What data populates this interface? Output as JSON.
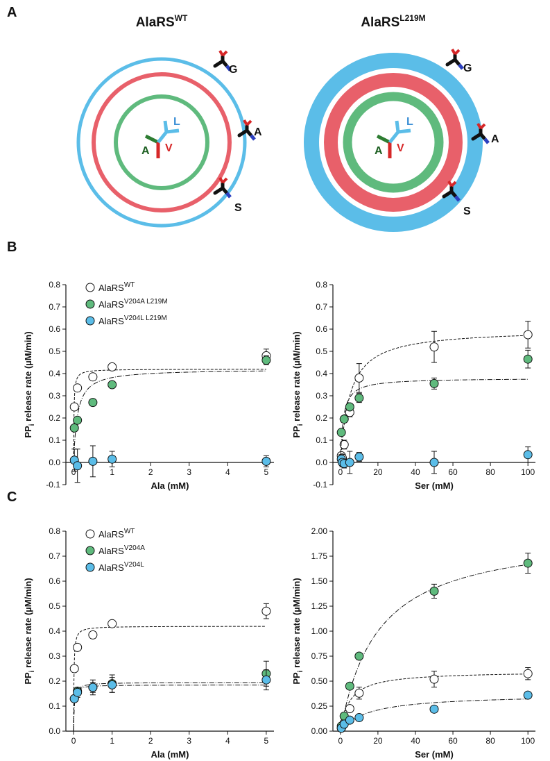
{
  "panels": [
    "A",
    "B",
    "C"
  ],
  "diagram": {
    "titles": [
      {
        "text": "AlaRS",
        "sup": "WT"
      },
      {
        "text": "AlaRS",
        "sup": "L219M"
      }
    ],
    "center_labels": [
      "L",
      "A",
      "V"
    ],
    "outer_labels": [
      "G",
      "A",
      "S"
    ]
  },
  "chart_data": [
    {
      "type": "scatter",
      "xlabel": "Ala (mM)",
      "ylabel": "PP",
      "ylabel_sub": "i",
      "ylabel_rest": " release rate (µM/min)",
      "xlim": [
        -0.2,
        5.2
      ],
      "xticks": [
        0,
        1,
        2,
        3,
        4,
        5
      ],
      "ylim": [
        -0.1,
        0.8
      ],
      "yticks": [
        -0.1,
        {
          "value": 0,
          "label": "0.0"
        },
        0.1,
        0.2,
        0.3,
        0.4,
        0.5,
        0.6,
        0.7,
        0.8
      ],
      "xaxis_at": 0,
      "legend": "upper left",
      "series": [
        {
          "name": "AlaRS",
          "name_sup": "WT",
          "color": "#ffffff",
          "x": [
            0.02,
            0.1,
            0.5,
            1,
            5
          ],
          "values": [
            0.25,
            0.335,
            0.385,
            0.43,
            0.48
          ],
          "errors": [
            0.01,
            0.01,
            0.01,
            0.01,
            0.03
          ],
          "fit": {
            "vmax": 0.42,
            "km": 0.01,
            "dash": "4,2"
          }
        },
        {
          "name": "AlaRS",
          "name_sup": "V204A L219M",
          "color": "#5fba7d",
          "x": [
            0.02,
            0.1,
            0.5,
            1,
            5
          ],
          "values": [
            0.155,
            0.19,
            0.27,
            0.35,
            0.46
          ],
          "errors": [
            0.01,
            0.01,
            0.01,
            0.01,
            0.02
          ],
          "fit": {
            "vmax": 0.42,
            "km": 0.1,
            "dash": "7,2,1,2"
          }
        },
        {
          "name": "AlaRS",
          "name_sup": "V204L L219M",
          "color": "#5bbde8",
          "x": [
            0.02,
            0.1,
            0.5,
            1,
            5
          ],
          "values": [
            0.01,
            -0.015,
            0.005,
            0.015,
            0.005
          ],
          "errors": [
            0.05,
            0.075,
            0.07,
            0.035,
            0.025
          ]
        }
      ]
    },
    {
      "type": "scatter",
      "xlabel": "Ser (mM)",
      "ylabel": "PP",
      "ylabel_sub": "i",
      "ylabel_rest": " release rate (µM/min)",
      "xlim": [
        -4,
        104
      ],
      "xticks": [
        0,
        20,
        40,
        60,
        80,
        100
      ],
      "ylim": [
        -0.1,
        0.8
      ],
      "yticks": [
        -0.1,
        {
          "value": 0,
          "label": "0.0"
        },
        0.1,
        0.2,
        0.3,
        0.4,
        0.5,
        0.6,
        0.7,
        0.8
      ],
      "xaxis_at": 0,
      "series": [
        {
          "name": "AlaRS",
          "name_sup": "WT",
          "color": "#ffffff",
          "x": [
            0.5,
            1,
            2,
            5,
            10,
            50,
            100
          ],
          "values": [
            0.03,
            0.02,
            0.08,
            0.225,
            0.38,
            0.52,
            0.575
          ],
          "errors": [
            0.01,
            0.01,
            0.02,
            0.02,
            0.065,
            0.07,
            0.06
          ],
          "fit": {
            "vmax": 0.6,
            "km": 5,
            "dash": "4,2"
          }
        },
        {
          "name": "AlaRS",
          "name_sup": "V204A L219M",
          "color": "#5fba7d",
          "x": [
            0.5,
            2,
            5,
            10,
            50,
            100
          ],
          "values": [
            0.135,
            0.195,
            0.25,
            0.29,
            0.355,
            0.465
          ],
          "errors": [
            0.01,
            0.01,
            0.01,
            0.02,
            0.025,
            0.04
          ],
          "fit": {
            "vmax": 0.38,
            "km": 1.5,
            "dash": "7,2,1,2"
          }
        },
        {
          "name": "AlaRS",
          "name_sup": "V204L L219M",
          "color": "#5bbde8",
          "x": [
            0.5,
            1,
            2,
            5,
            10,
            50,
            100
          ],
          "values": [
            0.015,
            0.0,
            -0.005,
            0.0,
            0.025,
            0.0,
            0.035
          ],
          "errors": [
            0.02,
            0.02,
            0.02,
            0.05,
            0.02,
            0.05,
            0.035
          ]
        }
      ]
    },
    {
      "type": "scatter",
      "xlabel": "Ala (mM)",
      "ylabel": "PP",
      "ylabel_sub": "i",
      "ylabel_rest": " release rate (µM/min)",
      "xlim": [
        -0.2,
        5.2
      ],
      "xticks": [
        0,
        1,
        2,
        3,
        4,
        5
      ],
      "ylim": [
        0,
        0.8
      ],
      "yticks": [
        {
          "value": 0,
          "label": "0.0"
        },
        0.1,
        0.2,
        0.3,
        0.4,
        0.5,
        0.6,
        0.7,
        0.8
      ],
      "xaxis_at": 0,
      "legend": "upper left",
      "series": [
        {
          "name": "AlaRS",
          "name_sup": "WT",
          "color": "#ffffff",
          "x": [
            0.02,
            0.1,
            0.5,
            1,
            5
          ],
          "values": [
            0.25,
            0.335,
            0.385,
            0.43,
            0.48
          ],
          "errors": [
            0.01,
            0.01,
            0.01,
            0.01,
            0.03
          ],
          "fit": {
            "vmax": 0.42,
            "km": 0.01,
            "dash": "4,2"
          }
        },
        {
          "name": "AlaRS",
          "name_sup": "V204A",
          "color": "#5fba7d",
          "x": [
            0.02,
            0.1,
            0.5,
            1,
            5
          ],
          "values": [
            0.13,
            0.16,
            0.175,
            0.19,
            0.23
          ],
          "errors": [
            0.01,
            0.01,
            0.02,
            0.035,
            0.05
          ],
          "fit": {
            "vmax": 0.195,
            "km": 0.02,
            "dash": "7,2,1,2"
          }
        },
        {
          "name": "AlaRS",
          "name_sup": "V204L",
          "color": "#5bbde8",
          "x": [
            0.02,
            0.1,
            0.5,
            1,
            5
          ],
          "values": [
            0.13,
            0.155,
            0.175,
            0.185,
            0.205
          ],
          "errors": [
            0.01,
            0.02,
            0.03,
            0.03,
            0.04
          ],
          "fit": {
            "vmax": 0.185,
            "km": 0.015,
            "dash": "7,2,1,2"
          }
        }
      ]
    },
    {
      "type": "scatter",
      "xlabel": "Ser (mM)",
      "ylabel": "PP",
      "ylabel_sub": "i",
      "ylabel_rest": " release rate (µM/min)",
      "xlim": [
        -4,
        104
      ],
      "xticks": [
        0,
        20,
        40,
        60,
        80,
        100
      ],
      "ylim": [
        0,
        2
      ],
      "yticks": [
        {
          "value": 0,
          "label": "0.00"
        },
        {
          "value": 0.25,
          "label": "0.25"
        },
        {
          "value": 0.5,
          "label": "0.50"
        },
        {
          "value": 0.75,
          "label": "0.75"
        },
        {
          "value": 1,
          "label": "1.00"
        },
        {
          "value": 1.25,
          "label": "1.25"
        },
        {
          "value": 1.5,
          "label": "1.50"
        },
        {
          "value": 1.75,
          "label": "1.75"
        },
        {
          "value": 2,
          "label": "2.00"
        }
      ],
      "xaxis_at": 0,
      "series": [
        {
          "name": "AlaRS",
          "name_sup": "WT",
          "color": "#ffffff",
          "x": [
            0.5,
            1,
            2,
            5,
            10,
            50,
            100
          ],
          "values": [
            0.03,
            0.05,
            0.08,
            0.225,
            0.38,
            0.52,
            0.575
          ],
          "errors": [
            0.02,
            0.02,
            0.02,
            0.03,
            0.06,
            0.08,
            0.06
          ],
          "fit": {
            "vmax": 0.6,
            "km": 5,
            "dash": "4,2"
          }
        },
        {
          "name": "AlaRS",
          "name_sup": "V204A",
          "color": "#5fba7d",
          "x": [
            0.5,
            2,
            5,
            10,
            50,
            100
          ],
          "values": [
            0.05,
            0.15,
            0.45,
            0.75,
            1.4,
            1.68
          ],
          "errors": [
            0.02,
            0.02,
            0.03,
            0.03,
            0.07,
            0.1
          ],
          "fit": {
            "vmax": 2.0,
            "km": 20,
            "dash": "7,2,1,2"
          }
        },
        {
          "name": "AlaRS",
          "name_sup": "V204L",
          "color": "#5bbde8",
          "x": [
            0.5,
            2,
            5,
            10,
            50,
            100
          ],
          "values": [
            0.03,
            0.07,
            0.11,
            0.135,
            0.22,
            0.36
          ],
          "errors": [
            0.01,
            0.01,
            0.01,
            0.02,
            0.03,
            0.03
          ],
          "fit": {
            "vmax": 0.37,
            "km": 15,
            "dash": "7,2,1,2"
          }
        }
      ]
    }
  ]
}
